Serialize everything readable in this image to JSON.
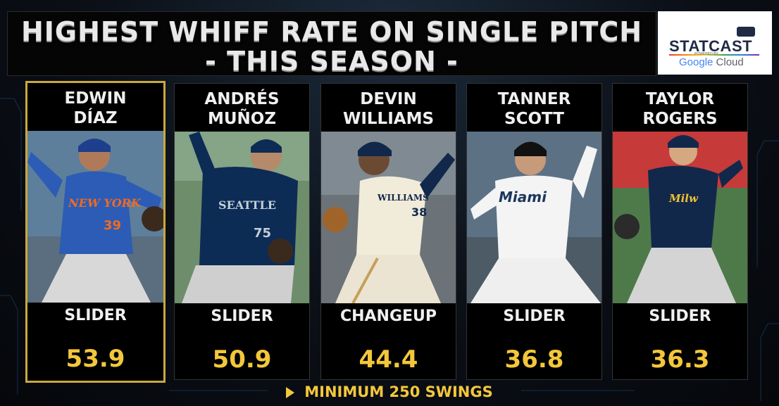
{
  "header": {
    "title_line1": "HIGHEST WHIFF RATE ON SINGLE PITCH",
    "title_line2": "- THIS SEASON -"
  },
  "logo": {
    "brand": "STATCAST",
    "powered": "POWERED BY",
    "google": "Google",
    "cloud": "Cloud"
  },
  "players": [
    {
      "first": "EDWIN",
      "last": "DÍAZ",
      "pitch": "SLIDER",
      "whiff": "53.9",
      "team": "NEW YORK",
      "number": "39",
      "highlighted": true
    },
    {
      "first": "ANDRÉS",
      "last": "MUÑOZ",
      "pitch": "SLIDER",
      "whiff": "50.9",
      "team": "SEATTLE",
      "number": "75",
      "highlighted": false
    },
    {
      "first": "DEVIN",
      "last": "WILLIAMS",
      "pitch": "CHANGEUP",
      "whiff": "44.4",
      "team": "WILLIAMS",
      "number": "38",
      "highlighted": false
    },
    {
      "first": "TANNER",
      "last": "SCOTT",
      "pitch": "SLIDER",
      "whiff": "36.8",
      "team": "Miami",
      "number": "",
      "highlighted": false
    },
    {
      "first": "TAYLOR",
      "last": "ROGERS",
      "pitch": "SLIDER",
      "whiff": "36.3",
      "team": "Milw",
      "number": "",
      "highlighted": false
    }
  ],
  "footer": {
    "note": "MINIMUM 250 SWINGS"
  },
  "colors": {
    "accent": "#f3c73b",
    "highlight_border": "#c9a93c",
    "card_bg": "#000000"
  }
}
